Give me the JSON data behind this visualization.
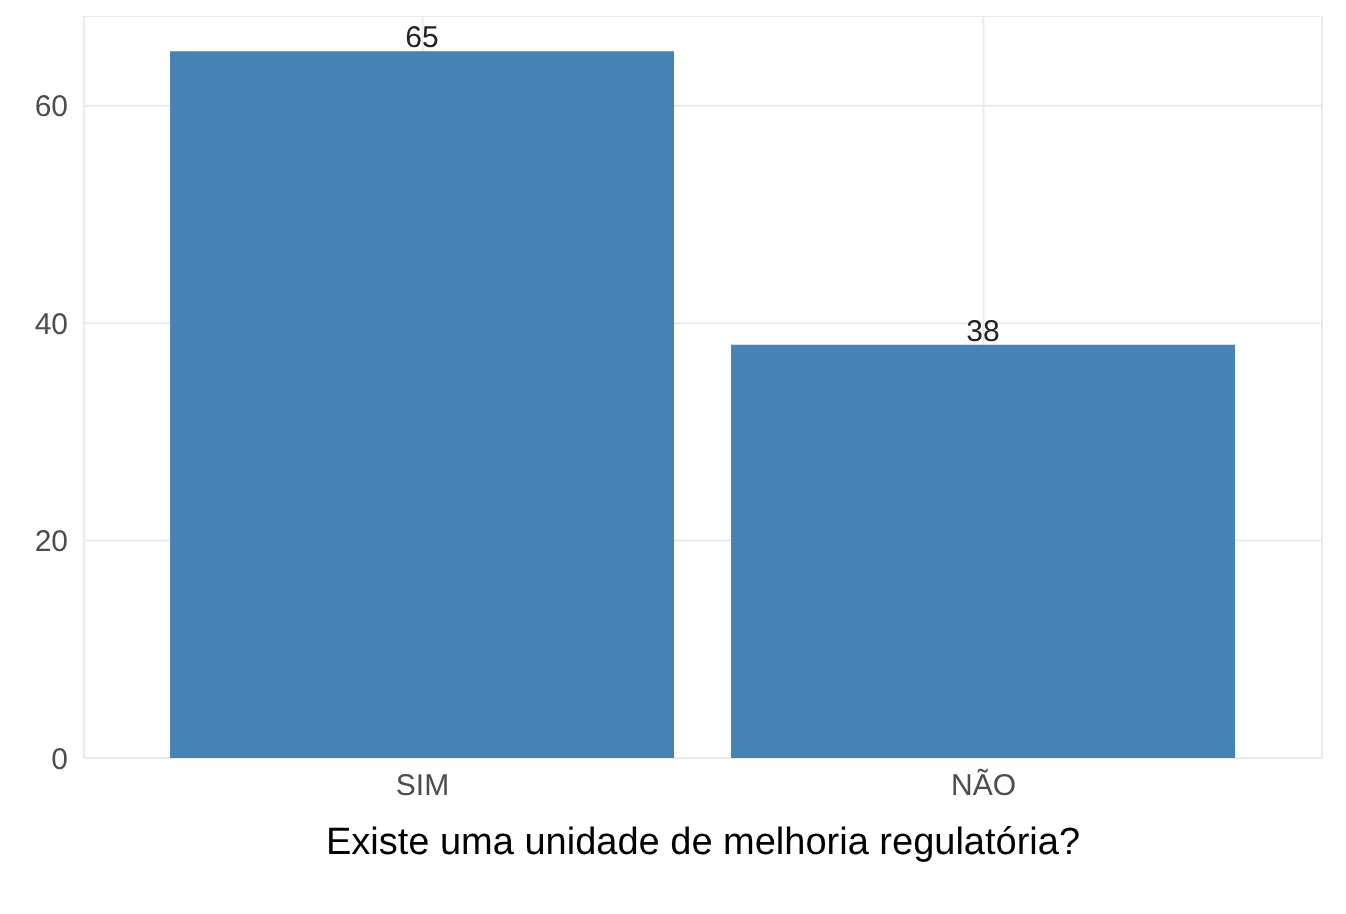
{
  "chart_data": {
    "type": "bar",
    "xlabel": "Existe uma unidade de melhoria regulatória?",
    "categories": [
      "SIM",
      "NÃO"
    ],
    "values": [
      65,
      38
    ],
    "color": "#4682b4",
    "ylim": [
      0,
      68.25
    ],
    "yticks": [
      0,
      20,
      40,
      60
    ],
    "grid": true,
    "data_labels": true
  }
}
